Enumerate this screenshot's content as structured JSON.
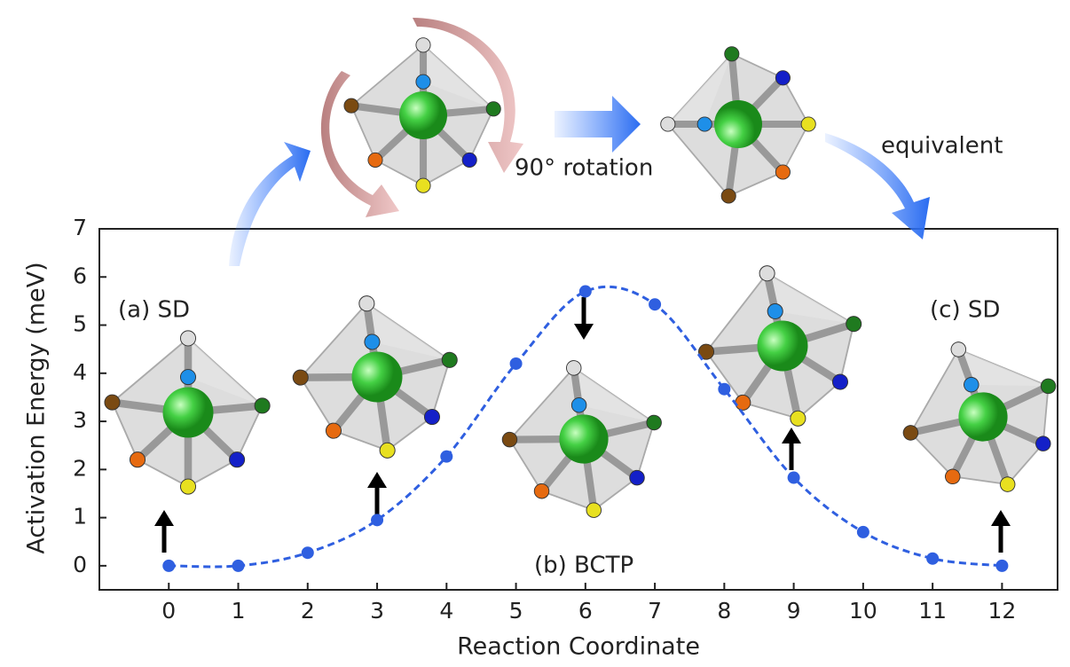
{
  "chart_data": {
    "type": "line",
    "x_label": "Reaction Coordinate",
    "y_label": "Activation Energy (meV)",
    "x": [
      0,
      1,
      2,
      3,
      4,
      5,
      6,
      7,
      8,
      9,
      10,
      11,
      12
    ],
    "series": [
      {
        "color": "#2f5fe0",
        "values": [
          0,
          0,
          0.27,
          0.95,
          2.27,
          4.2,
          5.7,
          5.43,
          3.67,
          1.83,
          0.7,
          0.15,
          0
        ]
      }
    ],
    "xlim": [
      -1,
      12.8
    ],
    "ylim": [
      -0.5,
      7
    ],
    "xticks": [
      0,
      1,
      2,
      3,
      4,
      5,
      6,
      7,
      8,
      9,
      10,
      11,
      12
    ],
    "yticks": [
      0,
      1,
      2,
      3,
      4,
      5,
      6,
      7
    ],
    "annotations": [
      "(a) SD",
      "(b) BCTP",
      "(c) SD",
      "90° rotation",
      "equivalent"
    ]
  }
}
